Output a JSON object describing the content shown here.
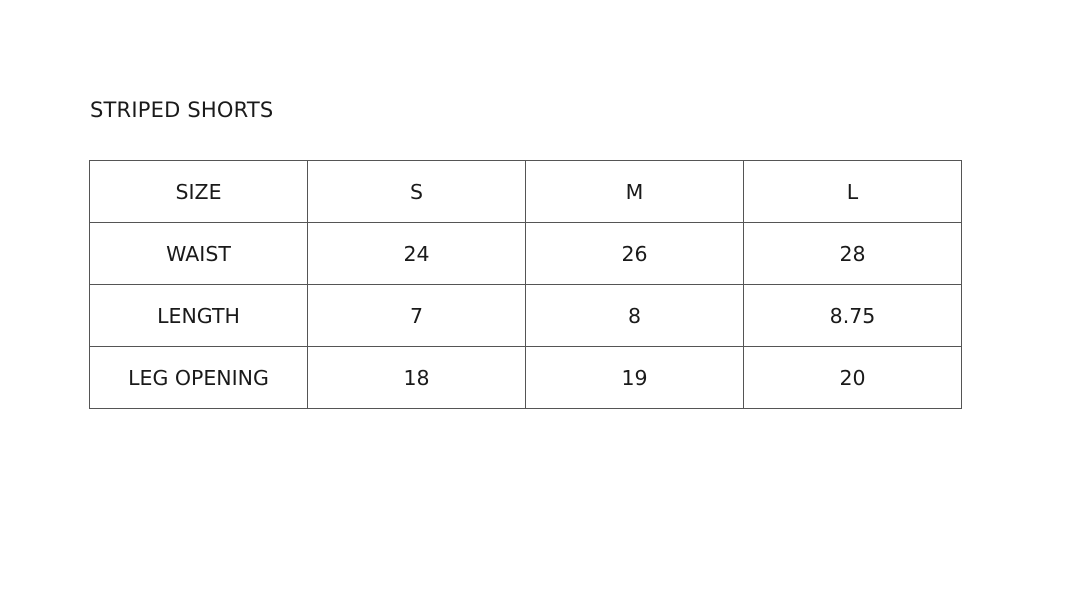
{
  "title": "STRIPED SHORTS",
  "table": {
    "header": [
      "SIZE",
      "S",
      "M",
      "L"
    ],
    "rows": [
      [
        "WAIST",
        "24",
        "26",
        "28"
      ],
      [
        "LENGTH",
        "7",
        "8",
        "8.75"
      ],
      [
        "LEG OPENING",
        "18",
        "19",
        "20"
      ]
    ]
  }
}
